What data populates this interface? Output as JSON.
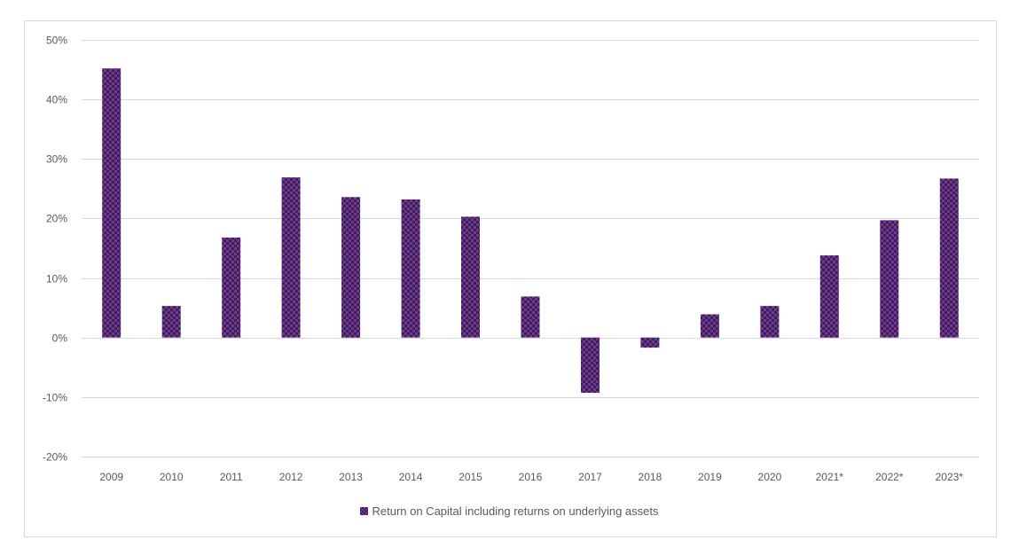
{
  "chart_data": {
    "type": "bar",
    "categories": [
      "2009",
      "2010",
      "2011",
      "2012",
      "2013",
      "2014",
      "2015",
      "2016",
      "2017",
      "2018",
      "2019",
      "2020",
      "2021*",
      "2022*",
      "2023*"
    ],
    "series": [
      {
        "name": "Return on Capital including returns on underlying assets",
        "values": [
          45.2,
          5.3,
          16.8,
          26.9,
          23.6,
          23.2,
          20.3,
          6.9,
          -9.3,
          -1.7,
          3.9,
          5.3,
          13.8,
          19.7,
          26.7
        ]
      }
    ],
    "ylim": [
      -20,
      50
    ],
    "yticks": [
      50,
      40,
      30,
      20,
      10,
      0,
      -10,
      -20
    ],
    "ytick_labels": [
      "50%",
      "40%",
      "30%",
      "20%",
      "10%",
      "0%",
      "-10%",
      "-20%"
    ],
    "grid": true,
    "legend_position": "bottom",
    "colors": {
      "bar_dark": "#1f2a6b",
      "bar_light": "#8e2d7c",
      "grid": "#d9d9d9",
      "text": "#595959"
    }
  }
}
